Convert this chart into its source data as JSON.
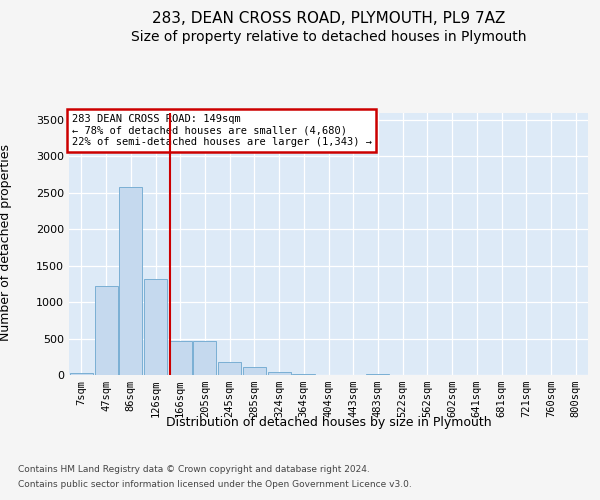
{
  "title1": "283, DEAN CROSS ROAD, PLYMOUTH, PL9 7AZ",
  "title2": "Size of property relative to detached houses in Plymouth",
  "xlabel": "Distribution of detached houses by size in Plymouth",
  "ylabel": "Number of detached properties",
  "footer1": "Contains HM Land Registry data © Crown copyright and database right 2024.",
  "footer2": "Contains public sector information licensed under the Open Government Licence v3.0.",
  "bin_labels": [
    "7sqm",
    "47sqm",
    "86sqm",
    "126sqm",
    "166sqm",
    "205sqm",
    "245sqm",
    "285sqm",
    "324sqm",
    "364sqm",
    "404sqm",
    "443sqm",
    "483sqm",
    "522sqm",
    "562sqm",
    "602sqm",
    "641sqm",
    "681sqm",
    "721sqm",
    "760sqm",
    "800sqm"
  ],
  "bar_heights": [
    28,
    1220,
    2580,
    1310,
    460,
    460,
    185,
    115,
    45,
    8,
    0,
    0,
    18,
    0,
    0,
    0,
    0,
    0,
    0,
    0,
    0
  ],
  "bar_color": "#c5d9ee",
  "bar_edge_color": "#7aafd4",
  "bg_color": "#ddeaf7",
  "grid_color": "#ffffff",
  "ylim_max": 3600,
  "yticks": [
    0,
    500,
    1000,
    1500,
    2000,
    2500,
    3000,
    3500
  ],
  "property_line_color": "#cc0000",
  "annotation_line1": "283 DEAN CROSS ROAD: 149sqm",
  "annotation_line2": "← 78% of detached houses are smaller (4,680)",
  "annotation_line3": "22% of semi-detached houses are larger (1,343) →",
  "ann_edge_color": "#cc0000",
  "fig_bg_color": "#f5f5f5",
  "title_fontsize": 11,
  "subtitle_fontsize": 10,
  "tick_fontsize": 7.5,
  "ytick_fontsize": 8,
  "footer_fontsize": 6.5,
  "label_fontsize": 9
}
